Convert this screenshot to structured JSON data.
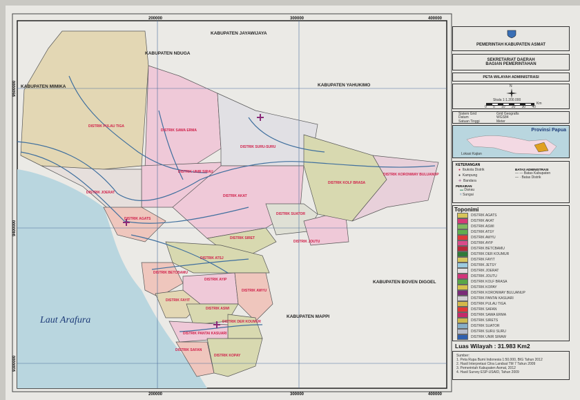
{
  "map": {
    "grid_x_labels": [
      "200000",
      "300000",
      "400000"
    ],
    "grid_y_labels": [
      "9500000",
      "9400000",
      "9300000"
    ],
    "neighbors": [
      {
        "name": "KABUPATEN JAYAWIJAYA"
      },
      {
        "name": "KABUPATEN NDUGA"
      },
      {
        "name": "KABUPATEN MIMIKA"
      },
      {
        "name": "KABUPATEN YAHUKIMO"
      },
      {
        "name": "KABUPATEN BOVEN DIGOEL"
      },
      {
        "name": "KABUPATEN MAPPI"
      }
    ],
    "sea": "Laut Arafura",
    "districts": [
      {
        "name": "DISTRIK PULAU TIGA"
      },
      {
        "name": "DISTRIK SAWA ERMA"
      },
      {
        "name": "DISTRIK SURU-SURU"
      },
      {
        "name": "DISTRIK UNIR SIRAU"
      },
      {
        "name": "DISTRIK AKAT"
      },
      {
        "name": "DISTRIK JOERAT"
      },
      {
        "name": "DISTRIK AGATS"
      },
      {
        "name": "DISTRIK SUATOR"
      },
      {
        "name": "DISTRIK JOUTU"
      },
      {
        "name": "DISTRIK SIRET"
      },
      {
        "name": "DISTRIK KOLF BRASA"
      },
      {
        "name": "DISTRIK KORONWAY BULUANOP"
      },
      {
        "name": "DISTRIK ATSJ"
      },
      {
        "name": "DISTRIK BETCBAMU"
      },
      {
        "name": "DISTRIK AYIP"
      },
      {
        "name": "DISTRIK AWYU"
      },
      {
        "name": "DISTRIK FAYIT"
      },
      {
        "name": "DISTRIK ASWI"
      },
      {
        "name": "DISTRIK DER KOUMUR"
      },
      {
        "name": "DISTRIK PANTAI KASUARI"
      },
      {
        "name": "DISTRIK SAFAN"
      },
      {
        "name": "DISTRIK KOPAY"
      }
    ],
    "colors": {
      "sea": "#b9d6df",
      "land": "#ebeae6",
      "river": "#3f6f9e",
      "pink": "#efc9d8",
      "tan": "#e3d7b4",
      "olive": "#d8d9b0",
      "peach": "#efc6bd"
    }
  },
  "panel": {
    "logo": "Logo Kabupaten Asmat",
    "header": "PEMERINTAH KABUPATEN ASMAT",
    "office_line1": "SEKRETARIAT DAERAH",
    "office_line2": "BAGIAN PEMERINTAHAN",
    "map_title": "PETA WILAYAH  ADMINISTRASI",
    "north": "N",
    "scale_label": "Skala  1:1.200.000",
    "scale_ticks": [
      "0",
      "5",
      "10",
      "20",
      "30",
      "40"
    ],
    "scale_unit": "Km",
    "projection": [
      {
        "key": "Sistem Grid",
        "value": "Grid Geografis"
      },
      {
        "key": "Datum",
        "value": "WGS84"
      },
      {
        "key": "Satuan Tinggi",
        "value": "Meter"
      }
    ],
    "inset_title": "Provinsi Papua",
    "inset_legend": "Lokasi Kajian",
    "keterangan": {
      "title": "KETERANGAN",
      "items": [
        {
          "icon": "red-dot-icon",
          "label": "Ibukota Distrik"
        },
        {
          "icon": "black-dot-icon",
          "label": "Kampung"
        },
        {
          "icon": "airport-icon",
          "label": "Bandara"
        }
      ],
      "admin_title": "BATAS ADMINISTRASI",
      "admin_items": [
        "Batas Kabupaten",
        "Batas Distrik"
      ],
      "water_title": "PERAIRAN",
      "water_items": [
        "Danau",
        "Sungai"
      ]
    },
    "toponimi": {
      "title": "Toponimi",
      "items": [
        {
          "label": "DISTRIK AGATS",
          "color": "#d6c45a"
        },
        {
          "label": "DISTRIK AKAT",
          "color": "#d63a78"
        },
        {
          "label": "DISTRIK ASWI",
          "color": "#7fb85e"
        },
        {
          "label": "DISTRIK ATSY",
          "color": "#5fae4e"
        },
        {
          "label": "DISTRIK AWYU",
          "color": "#dd3a3a"
        },
        {
          "label": "DISTRIK AYIP",
          "color": "#d94a8a"
        },
        {
          "label": "DISTRIK BETCBAMU",
          "color": "#b8283a"
        },
        {
          "label": "DISTRIK DER KOUMUR",
          "color": "#2f7a3a"
        },
        {
          "label": "DISTRIK FAYIT",
          "color": "#d8c65e"
        },
        {
          "label": "DISTRIK JETSY",
          "color": "#9ccbe0"
        },
        {
          "label": "DISTRIK JOERAT",
          "color": "#e2dfe0"
        },
        {
          "label": "DISTRIK JOUTU",
          "color": "#d2347a"
        },
        {
          "label": "DISTRIK KOLF BRASA",
          "color": "#58a648"
        },
        {
          "label": "DISTRIK KOPAY",
          "color": "#d4c04e"
        },
        {
          "label": "DISTRIK KORONWAY BULUANUP",
          "color": "#7a2a78"
        },
        {
          "label": "DISTRIK PANTAI KASUARI",
          "color": "#cfcdd2"
        },
        {
          "label": "DISTRIK PULAU TIGA",
          "color": "#d3b84a"
        },
        {
          "label": "DISTRIK SAFAN",
          "color": "#e03838"
        },
        {
          "label": "DISTRIK SAWA ERMA",
          "color": "#c42a6a"
        },
        {
          "label": "DISTRIK SIRETS",
          "color": "#cdb950"
        },
        {
          "label": "DISTRIK SUATOR",
          "color": "#87aec8"
        },
        {
          "label": "DISTRIK SURU SURU",
          "color": "#b6bccb"
        },
        {
          "label": "DISTRIK UNIR SIRAW",
          "color": "#2f5fae"
        }
      ]
    },
    "area": "Luas Wilayah : 31.983 Km2",
    "sources": {
      "title": "Sumber:",
      "items": [
        "1. Peta Rupa Bumi Indonesia 1:50.000, BIG Tahun 2012",
        "2. Hasil Interpretasi Citra Landsat TM 7 Tahun 2009",
        "3. Pemerintah Kabupaten Asmat, 2012",
        "4. Hasil Survey ESP-USAID, Tahun 2009"
      ]
    }
  }
}
